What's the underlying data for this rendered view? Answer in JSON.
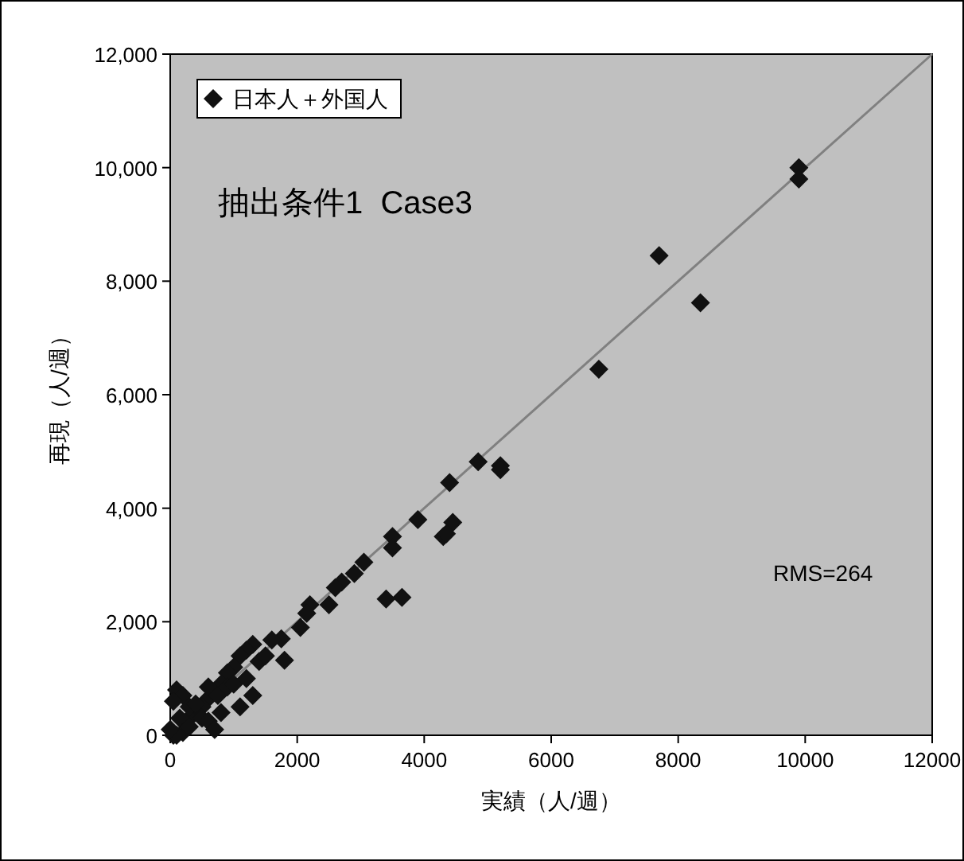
{
  "chart_data": {
    "type": "scatter",
    "xlabel": "実績（人/週）",
    "ylabel": "再現（人/週）",
    "annotations": [
      "抽出条件1  Case3",
      "RMS=264"
    ],
    "xlim": [
      0,
      12000
    ],
    "ylim": [
      0,
      12000
    ],
    "xticks": [
      0,
      2000,
      4000,
      6000,
      8000,
      10000,
      12000
    ],
    "yticks": [
      {
        "value": 0,
        "label": "0"
      },
      {
        "value": 2000,
        "label": "2,000"
      },
      {
        "value": 4000,
        "label": "4,000"
      },
      {
        "value": 6000,
        "label": "6,000"
      },
      {
        "value": 8000,
        "label": "8,000"
      },
      {
        "value": 10000,
        "label": "10,000"
      },
      {
        "value": 12000,
        "label": "12,000"
      }
    ],
    "grid": false,
    "legend": "top left",
    "marker": "diamond",
    "series": [
      {
        "type": "line",
        "color": "#808080",
        "x": [
          0,
          12000
        ],
        "values": [
          0,
          12000
        ],
        "marker": "none",
        "line_style": "solid"
      },
      {
        "name": "日本人＋外国人",
        "color": "#111111",
        "x": [
          9900,
          9900,
          7700,
          8350,
          6750,
          5200,
          5200,
          4850,
          4400,
          4450,
          4300,
          4350,
          3900,
          3650,
          3400,
          3500,
          3500,
          3050,
          2900,
          2700,
          2600,
          2500,
          2200,
          2150,
          2050,
          1750,
          1800,
          1600,
          1300,
          1200,
          1100,
          1000,
          900,
          800,
          600,
          500,
          400,
          300,
          1300,
          1100,
          800,
          100,
          200,
          50,
          300,
          400,
          150,
          500,
          600,
          700,
          50,
          200,
          100,
          0,
          300,
          600,
          750,
          900,
          1000,
          1200,
          1400,
          1500
        ],
        "values": [
          10000,
          9800,
          8450,
          7620,
          6450,
          4750,
          4680,
          4820,
          4450,
          3750,
          3500,
          3550,
          3800,
          2430,
          2400,
          3500,
          3300,
          3050,
          2850,
          2700,
          2600,
          2300,
          2300,
          2150,
          1900,
          1700,
          1320,
          1680,
          1600,
          1500,
          1400,
          1200,
          1100,
          900,
          650,
          500,
          400,
          300,
          700,
          500,
          400,
          800,
          700,
          600,
          500,
          550,
          300,
          300,
          250,
          100,
          0,
          50,
          0,
          100,
          150,
          850,
          700,
          850,
          900,
          1000,
          1300,
          1400
        ]
      }
    ]
  }
}
